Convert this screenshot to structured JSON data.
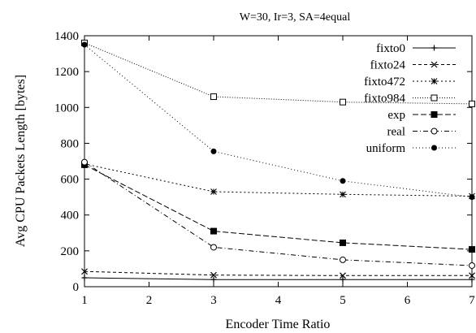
{
  "chart_data": {
    "type": "line",
    "title": "W=30, Ir=3, SA=4equal",
    "xlabel": "Encoder Time Ratio",
    "ylabel": "Avg CPU Packets Length [bytes]",
    "xlim": [
      1,
      7
    ],
    "ylim": [
      0,
      1400
    ],
    "xticks": [
      1,
      2,
      3,
      4,
      5,
      6,
      7
    ],
    "yticks": [
      0,
      200,
      400,
      600,
      800,
      1000,
      1200,
      1400
    ],
    "grid": false,
    "legend_position": "top-right",
    "x": [
      1,
      3,
      5,
      7
    ],
    "series": [
      {
        "name": "fixto0",
        "values": [
          50,
          40,
          40,
          40
        ],
        "marker": "plus",
        "dash": "solid"
      },
      {
        "name": "fixto24",
        "values": [
          85,
          65,
          62,
          62
        ],
        "marker": "cross",
        "dash": "dashed"
      },
      {
        "name": "fixto472",
        "values": [
          685,
          530,
          515,
          505
        ],
        "marker": "star",
        "dash": "short-dashed"
      },
      {
        "name": "fixto984",
        "values": [
          1360,
          1060,
          1030,
          1020
        ],
        "marker": "open-square",
        "dash": "dotted"
      },
      {
        "name": "exp",
        "values": [
          680,
          310,
          245,
          208
        ],
        "marker": "filled-square",
        "dash": "long-dashed"
      },
      {
        "name": "real",
        "values": [
          695,
          220,
          150,
          118
        ],
        "marker": "open-circle",
        "dash": "dash-dot"
      },
      {
        "name": "uniform",
        "values": [
          1350,
          755,
          590,
          500
        ],
        "marker": "filled-circle",
        "dash": "fine-dotted"
      }
    ]
  }
}
